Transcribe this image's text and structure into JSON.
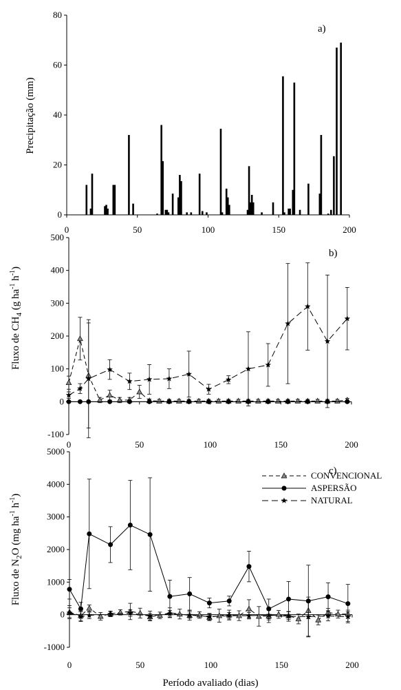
{
  "chart_data": [
    {
      "type": "bar",
      "panel_label": "a)",
      "ylabel": "Precipitação (mm)",
      "xlim": [
        0,
        200
      ],
      "ylim": [
        0,
        80
      ],
      "xticks": [
        0,
        50,
        100,
        150,
        200
      ],
      "yticks": [
        0,
        20,
        40,
        60,
        80
      ],
      "bars": [
        {
          "x": 14,
          "y": 12
        },
        {
          "x": 17,
          "y": 2.5
        },
        {
          "x": 18,
          "y": 16.5
        },
        {
          "x": 27,
          "y": 3.5
        },
        {
          "x": 28,
          "y": 4
        },
        {
          "x": 29,
          "y": 2.5
        },
        {
          "x": 33,
          "y": 12
        },
        {
          "x": 34,
          "y": 12
        },
        {
          "x": 44,
          "y": 32
        },
        {
          "x": 47,
          "y": 4.5
        },
        {
          "x": 64,
          "y": 0.5
        },
        {
          "x": 67,
          "y": 36
        },
        {
          "x": 68,
          "y": 21.5
        },
        {
          "x": 70,
          "y": 2
        },
        {
          "x": 71,
          "y": 2
        },
        {
          "x": 72,
          "y": 1
        },
        {
          "x": 75,
          "y": 8.5
        },
        {
          "x": 79,
          "y": 7
        },
        {
          "x": 80,
          "y": 16
        },
        {
          "x": 81,
          "y": 13.5
        },
        {
          "x": 85,
          "y": 1
        },
        {
          "x": 88,
          "y": 1
        },
        {
          "x": 94,
          "y": 16.5
        },
        {
          "x": 96,
          "y": 1.5
        },
        {
          "x": 99,
          "y": 1
        },
        {
          "x": 109,
          "y": 34.5
        },
        {
          "x": 110,
          "y": 1
        },
        {
          "x": 113,
          "y": 10.5
        },
        {
          "x": 114,
          "y": 7
        },
        {
          "x": 115,
          "y": 4
        },
        {
          "x": 128,
          "y": 2
        },
        {
          "x": 129,
          "y": 19.5
        },
        {
          "x": 130,
          "y": 5
        },
        {
          "x": 131,
          "y": 8
        },
        {
          "x": 132,
          "y": 5
        },
        {
          "x": 138,
          "y": 1
        },
        {
          "x": 146,
          "y": 5
        },
        {
          "x": 153,
          "y": 55.5
        },
        {
          "x": 154,
          "y": 1
        },
        {
          "x": 157,
          "y": 2.5
        },
        {
          "x": 158,
          "y": 2.5
        },
        {
          "x": 160,
          "y": 10
        },
        {
          "x": 161,
          "y": 53
        },
        {
          "x": 165,
          "y": 2
        },
        {
          "x": 171,
          "y": 12.5
        },
        {
          "x": 179,
          "y": 8.5
        },
        {
          "x": 180,
          "y": 32
        },
        {
          "x": 185,
          "y": 0.5
        },
        {
          "x": 187,
          "y": 2
        },
        {
          "x": 189,
          "y": 23.5
        },
        {
          "x": 191,
          "y": 67
        },
        {
          "x": 194,
          "y": 69
        }
      ]
    },
    {
      "type": "line",
      "panel_label": "b)",
      "ylabel_prefix": "Fluxo de CH",
      "ylabel_sub": "4",
      "ylabel_mid": " (g ha",
      "ylabel_sup1": "-1",
      "ylabel_mid2": " h",
      "ylabel_sup2": "-1",
      "ylabel_end": ")",
      "xlim": [
        0,
        200
      ],
      "ylim": [
        -100,
        500
      ],
      "xticks": [
        0,
        50,
        100,
        150,
        200
      ],
      "yticks": [
        -100,
        0,
        100,
        200,
        300,
        400,
        500
      ],
      "series": [
        {
          "name": "CONVENCIONAL",
          "marker": "triangle",
          "dash": "dashed",
          "points": [
            {
              "x": 0,
              "y": 58,
              "err": 20
            },
            {
              "x": 8,
              "y": 192,
              "err": 65
            },
            {
              "x": 14,
              "y": 80,
              "err": 160
            },
            {
              "x": 22,
              "y": 5,
              "err": 8
            },
            {
              "x": 29,
              "y": 20,
              "err": 15
            },
            {
              "x": 36,
              "y": 5,
              "err": 8
            },
            {
              "x": 43,
              "y": 5,
              "err": 8
            },
            {
              "x": 50,
              "y": 30,
              "err": 20
            },
            {
              "x": 57,
              "y": 3,
              "err": 5
            },
            {
              "x": 64,
              "y": 2,
              "err": 5
            },
            {
              "x": 71,
              "y": 2,
              "err": 5
            },
            {
              "x": 78,
              "y": 2,
              "err": 5
            },
            {
              "x": 85,
              "y": 2,
              "err": 5
            },
            {
              "x": 92,
              "y": 2,
              "err": 5
            },
            {
              "x": 99,
              "y": 2,
              "err": 5
            },
            {
              "x": 106,
              "y": 2,
              "err": 5
            },
            {
              "x": 113,
              "y": 2,
              "err": 5
            },
            {
              "x": 120,
              "y": 2,
              "err": 5
            },
            {
              "x": 127,
              "y": 2,
              "err": 5
            },
            {
              "x": 134,
              "y": 2,
              "err": 5
            },
            {
              "x": 141,
              "y": 2,
              "err": 5
            },
            {
              "x": 148,
              "y": 2,
              "err": 5
            },
            {
              "x": 155,
              "y": 2,
              "err": 5
            },
            {
              "x": 162,
              "y": 2,
              "err": 5
            },
            {
              "x": 169,
              "y": 2,
              "err": 5
            },
            {
              "x": 176,
              "y": 2,
              "err": 5
            },
            {
              "x": 183,
              "y": 2,
              "err": 5
            },
            {
              "x": 190,
              "y": 2,
              "err": 5
            },
            {
              "x": 197,
              "y": 5,
              "err": 5
            }
          ]
        },
        {
          "name": "ASPERSÃO",
          "marker": "circle",
          "dash": "solid",
          "points": [
            {
              "x": 0,
              "y": 0,
              "err": 3
            },
            {
              "x": 8,
              "y": 0,
              "err": 3
            },
            {
              "x": 14,
              "y": 0,
              "err": 3
            },
            {
              "x": 29,
              "y": 0,
              "err": 3
            },
            {
              "x": 43,
              "y": 0,
              "err": 3
            },
            {
              "x": 57,
              "y": 0,
              "err": 3
            },
            {
              "x": 71,
              "y": 0,
              "err": 3
            },
            {
              "x": 85,
              "y": 0,
              "err": 3
            },
            {
              "x": 99,
              "y": 0,
              "err": 3
            },
            {
              "x": 113,
              "y": 0,
              "err": 3
            },
            {
              "x": 127,
              "y": 0,
              "err": 3
            },
            {
              "x": 141,
              "y": 0,
              "err": 3
            },
            {
              "x": 155,
              "y": 0,
              "err": 3
            },
            {
              "x": 169,
              "y": 0,
              "err": 3
            },
            {
              "x": 183,
              "y": 0,
              "err": 3
            },
            {
              "x": 197,
              "y": 0,
              "err": 3
            }
          ]
        },
        {
          "name": "NATURAL",
          "marker": "star",
          "dash": "longdash",
          "points": [
            {
              "x": 0,
              "y": 20,
              "err": 10
            },
            {
              "x": 8,
              "y": 40,
              "err": 15
            },
            {
              "x": 14,
              "y": 70,
              "err": 180
            },
            {
              "x": 29,
              "y": 98,
              "err": 30
            },
            {
              "x": 43,
              "y": 62,
              "err": 25
            },
            {
              "x": 57,
              "y": 68,
              "err": 45
            },
            {
              "x": 71,
              "y": 70,
              "err": 30
            },
            {
              "x": 85,
              "y": 84,
              "err": 70
            },
            {
              "x": 99,
              "y": 38,
              "err": 15
            },
            {
              "x": 113,
              "y": 67,
              "err": 12
            },
            {
              "x": 127,
              "y": 100,
              "err": 113
            },
            {
              "x": 141,
              "y": 112,
              "err": 65
            },
            {
              "x": 155,
              "y": 238,
              "err": 183
            },
            {
              "x": 169,
              "y": 290,
              "err": 133
            },
            {
              "x": 183,
              "y": 184,
              "err": 202
            },
            {
              "x": 197,
              "y": 253,
              "err": 95
            }
          ]
        }
      ]
    },
    {
      "type": "line",
      "panel_label": "c)",
      "ylabel_prefix": "Fluxo de N",
      "ylabel_sub": "2",
      "ylabel_mid": "O (mg ha",
      "ylabel_sup1": "-1",
      "ylabel_mid2": " h",
      "ylabel_sup2": "-1",
      "ylabel_end": ")",
      "xlabel": "Período avaliado (dias)",
      "xlim": [
        0,
        200
      ],
      "ylim": [
        -1000,
        5000
      ],
      "xticks": [
        0,
        50,
        100,
        150,
        200
      ],
      "yticks": [
        -1000,
        0,
        1000,
        2000,
        3000,
        4000,
        5000
      ],
      "legend": [
        {
          "name": "CONVENCIONAL",
          "marker": "triangle",
          "dash": "dashed"
        },
        {
          "name": "ASPERSÃO",
          "marker": "circle",
          "dash": "solid"
        },
        {
          "name": "NATURAL",
          "marker": "star",
          "dash": "longdash"
        }
      ],
      "series": [
        {
          "name": "ASPERSÃO",
          "marker": "circle",
          "dash": "solid",
          "points": [
            {
              "x": 0,
              "y": 780,
              "err": 300
            },
            {
              "x": 8,
              "y": 180,
              "err": 200
            },
            {
              "x": 14,
              "y": 2480,
              "err": 1680
            },
            {
              "x": 29,
              "y": 2150,
              "err": 550
            },
            {
              "x": 43,
              "y": 2750,
              "err": 1370
            },
            {
              "x": 57,
              "y": 2460,
              "err": 1740
            },
            {
              "x": 71,
              "y": 560,
              "err": 500
            },
            {
              "x": 85,
              "y": 640,
              "err": 500
            },
            {
              "x": 99,
              "y": 360,
              "err": 150
            },
            {
              "x": 113,
              "y": 420,
              "err": 150
            },
            {
              "x": 127,
              "y": 1480,
              "err": 470
            },
            {
              "x": 141,
              "y": 180,
              "err": 300
            },
            {
              "x": 155,
              "y": 480,
              "err": 540
            },
            {
              "x": 169,
              "y": 420,
              "err": 1100
            },
            {
              "x": 183,
              "y": 550,
              "err": 430
            },
            {
              "x": 197,
              "y": 340,
              "err": 590
            }
          ]
        },
        {
          "name": "CONVENCIONAL",
          "marker": "triangle",
          "dash": "dashed",
          "points": [
            {
              "x": 0,
              "y": 80,
              "err": 200
            },
            {
              "x": 8,
              "y": -30,
              "err": 150
            },
            {
              "x": 14,
              "y": 200,
              "err": 100
            },
            {
              "x": 22,
              "y": -50,
              "err": 120
            },
            {
              "x": 29,
              "y": 30,
              "err": 80
            },
            {
              "x": 36,
              "y": 70,
              "err": 80
            },
            {
              "x": 43,
              "y": 100,
              "err": 250
            },
            {
              "x": 50,
              "y": 50,
              "err": 150
            },
            {
              "x": 57,
              "y": -60,
              "err": 100
            },
            {
              "x": 64,
              "y": -20,
              "err": 100
            },
            {
              "x": 71,
              "y": 60,
              "err": 150
            },
            {
              "x": 78,
              "y": 20,
              "err": 150
            },
            {
              "x": 85,
              "y": -20,
              "err": 150
            },
            {
              "x": 92,
              "y": -10,
              "err": 100
            },
            {
              "x": 99,
              "y": -80,
              "err": 100
            },
            {
              "x": 106,
              "y": -30,
              "err": 200
            },
            {
              "x": 113,
              "y": -10,
              "err": 150
            },
            {
              "x": 120,
              "y": -30,
              "err": 150
            },
            {
              "x": 127,
              "y": 180,
              "err": 280
            },
            {
              "x": 134,
              "y": -50,
              "err": 300
            },
            {
              "x": 141,
              "y": -40,
              "err": 200
            },
            {
              "x": 148,
              "y": 10,
              "err": 120
            },
            {
              "x": 155,
              "y": -30,
              "err": 120
            },
            {
              "x": 162,
              "y": -130,
              "err": 150
            },
            {
              "x": 169,
              "y": 130,
              "err": 250
            },
            {
              "x": 176,
              "y": -160,
              "err": 150
            },
            {
              "x": 183,
              "y": 70,
              "err": 120
            },
            {
              "x": 190,
              "y": 20,
              "err": 120
            },
            {
              "x": 197,
              "y": 20,
              "err": 120
            }
          ]
        },
        {
          "name": "NATURAL",
          "marker": "star",
          "dash": "longdash",
          "points": [
            {
              "x": 0,
              "y": 60,
              "err": 150
            },
            {
              "x": 8,
              "y": -60,
              "err": 150
            },
            {
              "x": 14,
              "y": -20,
              "err": 100
            },
            {
              "x": 29,
              "y": 20,
              "err": 80
            },
            {
              "x": 43,
              "y": 50,
              "err": 100
            },
            {
              "x": 57,
              "y": -40,
              "err": 150
            },
            {
              "x": 71,
              "y": 30,
              "err": 100
            },
            {
              "x": 85,
              "y": -10,
              "err": 100
            },
            {
              "x": 99,
              "y": -60,
              "err": 100
            },
            {
              "x": 113,
              "y": -30,
              "err": 100
            },
            {
              "x": 127,
              "y": -30,
              "err": 100
            },
            {
              "x": 141,
              "y": -10,
              "err": 150
            },
            {
              "x": 155,
              "y": -50,
              "err": 150
            },
            {
              "x": 169,
              "y": -60,
              "err": 600
            },
            {
              "x": 183,
              "y": -40,
              "err": 150
            },
            {
              "x": 197,
              "y": -60,
              "err": 150
            }
          ]
        }
      ]
    }
  ]
}
